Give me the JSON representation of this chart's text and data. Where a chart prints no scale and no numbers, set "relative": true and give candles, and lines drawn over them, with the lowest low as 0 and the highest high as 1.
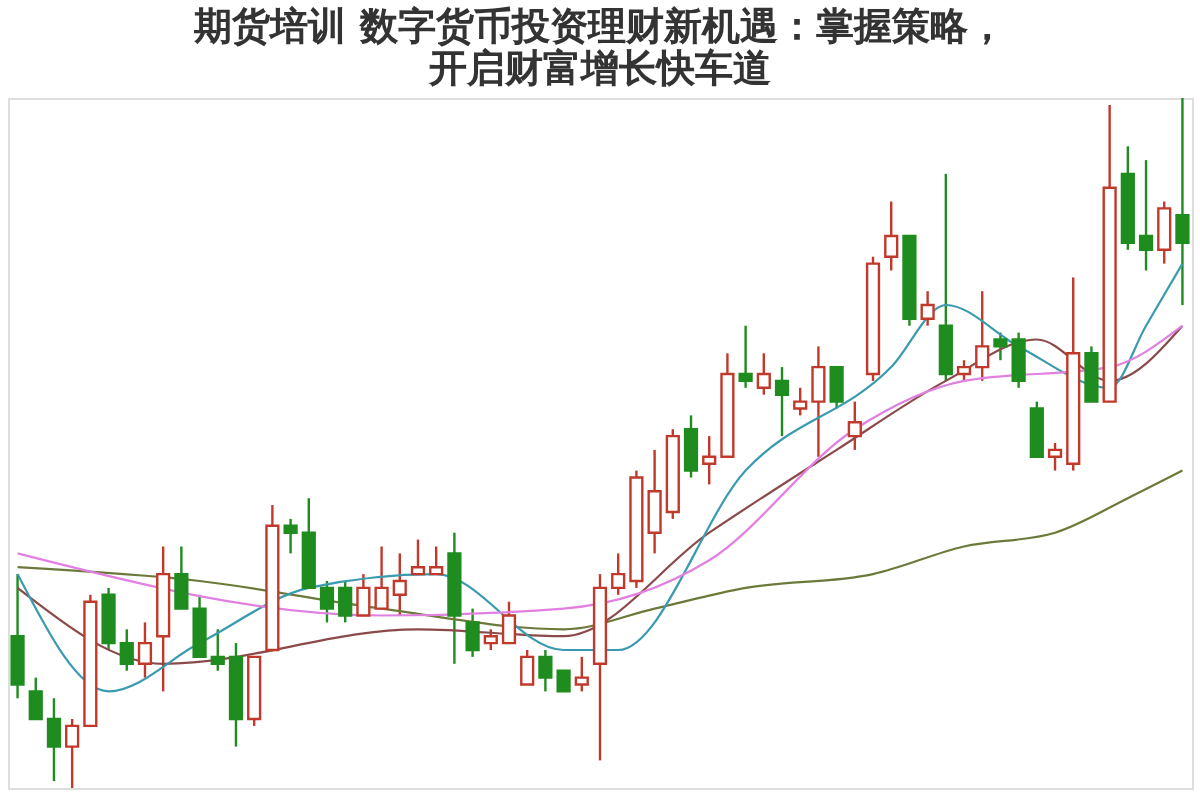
{
  "chart_data": {
    "type": "candlestick",
    "relative": true,
    "title": "期货培训 数字货币投资理财新机遇：掌握策略，开启财富增长快车道",
    "categories": [
      null,
      null,
      null,
      null,
      null,
      null,
      null,
      null,
      null,
      null,
      null,
      null,
      null,
      null,
      null,
      null,
      null,
      null,
      null,
      null,
      null,
      null,
      null,
      null,
      null,
      null,
      null,
      null,
      null,
      null,
      null,
      null,
      null,
      null,
      null,
      null,
      null,
      null,
      null,
      null,
      null,
      null,
      null,
      null,
      null,
      null,
      null,
      null,
      null,
      null,
      null,
      null,
      null,
      null,
      null,
      null,
      null,
      null,
      null,
      null,
      null,
      null,
      null,
      null,
      null
    ],
    "ohlc": [
      [
        0.22,
        0.31,
        0.13,
        0.15
      ],
      [
        0.14,
        0.16,
        0.1,
        0.1
      ],
      [
        0.1,
        0.13,
        0.01,
        0.06
      ],
      [
        0.06,
        0.1,
        0,
        0.09
      ],
      [
        0.09,
        0.28,
        0.09,
        0.27
      ],
      [
        0.28,
        0.29,
        0.2,
        0.21
      ],
      [
        0.21,
        0.23,
        0.17,
        0.18
      ],
      [
        0.18,
        0.24,
        0.16,
        0.21
      ],
      [
        0.22,
        0.35,
        0.14,
        0.31
      ],
      [
        0.31,
        0.35,
        0.26,
        0.26
      ],
      [
        0.26,
        0.28,
        0.19,
        0.19
      ],
      [
        0.19,
        0.23,
        0.17,
        0.18
      ],
      [
        0.19,
        0.21,
        0.06,
        0.1
      ],
      [
        0.1,
        0.19,
        0.09,
        0.19
      ],
      [
        0.2,
        0.41,
        0.2,
        0.38
      ],
      [
        0.38,
        0.39,
        0.34,
        0.37
      ],
      [
        0.37,
        0.42,
        0.29,
        0.29
      ],
      [
        0.29,
        0.3,
        0.24,
        0.26
      ],
      [
        0.29,
        0.3,
        0.24,
        0.25
      ],
      [
        0.25,
        0.31,
        0.25,
        0.29
      ],
      [
        0.26,
        0.35,
        0.26,
        0.29
      ],
      [
        0.28,
        0.34,
        0.25,
        0.3
      ],
      [
        0.31,
        0.36,
        0.31,
        0.32
      ],
      [
        0.31,
        0.35,
        0.31,
        0.32
      ],
      [
        0.34,
        0.37,
        0.18,
        0.25
      ],
      [
        0.24,
        0.26,
        0.19,
        0.2
      ],
      [
        0.21,
        0.23,
        0.2,
        0.22
      ],
      [
        0.21,
        0.27,
        0.21,
        0.25
      ],
      [
        0.15,
        0.2,
        0.15,
        0.19
      ],
      [
        0.19,
        0.2,
        0.14,
        0.16
      ],
      [
        0.17,
        0.17,
        0.14,
        0.14
      ],
      [
        0.15,
        0.19,
        0.14,
        0.16
      ],
      [
        0.18,
        0.31,
        0.04,
        0.29
      ],
      [
        0.29,
        0.34,
        0.28,
        0.31
      ],
      [
        0.3,
        0.46,
        0.29,
        0.45
      ],
      [
        0.37,
        0.49,
        0.34,
        0.43
      ],
      [
        0.4,
        0.52,
        0.39,
        0.51
      ],
      [
        0.52,
        0.54,
        0.45,
        0.46
      ],
      [
        0.47,
        0.51,
        0.44,
        0.48
      ],
      [
        0.48,
        0.63,
        0.48,
        0.6
      ],
      [
        0.6,
        0.67,
        0.58,
        0.59
      ],
      [
        0.58,
        0.63,
        0.57,
        0.6
      ],
      [
        0.59,
        0.61,
        0.51,
        0.57
      ],
      [
        0.55,
        0.58,
        0.54,
        0.56
      ],
      [
        0.56,
        0.64,
        0.48,
        0.61
      ],
      [
        0.61,
        0.61,
        0.55,
        0.56
      ],
      [
        0.51,
        0.56,
        0.49,
        0.53
      ],
      [
        0.6,
        0.77,
        0.59,
        0.76
      ],
      [
        0.77,
        0.85,
        0.75,
        0.8
      ],
      [
        0.8,
        0.8,
        0.67,
        0.68
      ],
      [
        0.68,
        0.72,
        0.67,
        0.7
      ],
      [
        0.67,
        0.89,
        0.59,
        0.6
      ],
      [
        0.6,
        0.62,
        0.59,
        0.61
      ],
      [
        0.61,
        0.72,
        0.59,
        0.64
      ],
      [
        0.65,
        0.66,
        0.62,
        0.64
      ],
      [
        0.65,
        0.66,
        0.58,
        0.59
      ],
      [
        0.55,
        0.56,
        0.48,
        0.48
      ],
      [
        0.48,
        0.5,
        0.46,
        0.49
      ],
      [
        0.47,
        0.74,
        0.46,
        0.63
      ],
      [
        0.63,
        0.64,
        0.56,
        0.56
      ],
      [
        0.56,
        0.99,
        0.56,
        0.87
      ],
      [
        0.89,
        0.93,
        0.78,
        0.79
      ],
      [
        0.8,
        0.91,
        0.75,
        0.78
      ],
      [
        0.78,
        0.85,
        0.76,
        0.84
      ],
      [
        0.83,
        1,
        0.7,
        0.79
      ]
    ],
    "colors": [
      "#1e8c1e",
      "#1e8c1e",
      "#1e8c1e",
      "#c0392b",
      "#c0392b",
      "#1e8c1e",
      "#1e8c1e",
      "#c0392b",
      "#c0392b",
      "#1e8c1e",
      "#1e8c1e",
      "#1e8c1e",
      "#1e8c1e",
      "#c0392b",
      "#c0392b",
      "#1e8c1e",
      "#1e8c1e",
      "#1e8c1e",
      "#1e8c1e",
      "#c0392b",
      "#c0392b",
      "#c0392b",
      "#c0392b",
      "#c0392b",
      "#1e8c1e",
      "#1e8c1e",
      "#c0392b",
      "#c0392b",
      "#c0392b",
      "#1e8c1e",
      "#1e8c1e",
      "#c0392b",
      "#c0392b",
      "#c0392b",
      "#c0392b",
      "#c0392b",
      "#c0392b",
      "#1e8c1e",
      "#c0392b",
      "#c0392b",
      "#1e8c1e",
      "#c0392b",
      "#1e8c1e",
      "#c0392b",
      "#c0392b",
      "#1e8c1e",
      "#c0392b",
      "#c0392b",
      "#c0392b",
      "#1e8c1e",
      "#c0392b",
      "#1e8c1e",
      "#c0392b",
      "#c0392b",
      "#1e8c1e",
      "#1e8c1e",
      "#1e8c1e",
      "#c0392b",
      "#c0392b",
      "#1e8c1e",
      "#c0392b",
      "#1e8c1e",
      "#1e8c1e",
      "#c0392b",
      "#1e8c1e"
    ],
    "series": [
      {
        "type": "line",
        "color": "#6b7a3a",
        "values": [
          0.32,
          null,
          null,
          null,
          null,
          null,
          null,
          null,
          null,
          null,
          0.3,
          null,
          null,
          null,
          null,
          null,
          null,
          null,
          null,
          null,
          0.26,
          null,
          null,
          null,
          null,
          null,
          null,
          null,
          null,
          null,
          0.23,
          null,
          null,
          null,
          null,
          0.26,
          null,
          null,
          null,
          null,
          0.29,
          null,
          null,
          null,
          null,
          null,
          null,
          0.31,
          null,
          null,
          null,
          null,
          0.35,
          null,
          null,
          null,
          null,
          0.37,
          null,
          null,
          null,
          0.42,
          null,
          null,
          0.46
        ]
      },
      {
        "type": "line",
        "color": "#8b4a4a",
        "values": [
          0.29,
          null,
          null,
          null,
          null,
          null,
          null,
          null,
          0.18,
          null,
          null,
          null,
          null,
          null,
          null,
          null,
          null,
          null,
          null,
          null,
          null,
          null,
          0.23,
          null,
          null,
          null,
          null,
          null,
          null,
          null,
          0.22,
          null,
          null,
          null,
          null,
          null,
          null,
          null,
          0.37,
          null,
          null,
          null,
          null,
          null,
          null,
          0.49,
          null,
          null,
          null,
          null,
          null,
          0.59,
          null,
          null,
          null,
          null,
          0.65,
          null,
          null,
          null,
          0.59,
          null,
          null,
          null,
          0.67
        ]
      },
      {
        "type": "line",
        "color": "#3a9ab0",
        "values": [
          0.31,
          null,
          null,
          null,
          null,
          0.14,
          null,
          null,
          null,
          null,
          0.21,
          null,
          null,
          null,
          null,
          null,
          0.29,
          null,
          null,
          null,
          null,
          null,
          null,
          0.31,
          null,
          null,
          null,
          null,
          null,
          null,
          0.2,
          null,
          null,
          0.2,
          null,
          null,
          null,
          null,
          null,
          null,
          0.46,
          null,
          null,
          null,
          null,
          null,
          null,
          null,
          0.61,
          null,
          null,
          0.7,
          null,
          null,
          null,
          0.64,
          null,
          null,
          null,
          null,
          0.58,
          null,
          0.67,
          null,
          0.76
        ]
      },
      {
        "type": "line",
        "color": "#e080e0",
        "values": [
          0.34,
          null,
          null,
          null,
          null,
          null,
          null,
          null,
          null,
          null,
          null,
          null,
          null,
          null,
          null,
          null,
          null,
          null,
          null,
          null,
          0.25,
          null,
          null,
          null,
          null,
          null,
          null,
          null,
          null,
          null,
          0.26,
          null,
          null,
          null,
          null,
          null,
          null,
          null,
          0.33,
          null,
          null,
          null,
          null,
          null,
          null,
          null,
          0.52,
          null,
          null,
          null,
          null,
          null,
          0.59,
          null,
          null,
          null,
          null,
          null,
          null,
          null,
          0.61,
          null,
          null,
          null,
          0.67
        ]
      }
    ]
  }
}
